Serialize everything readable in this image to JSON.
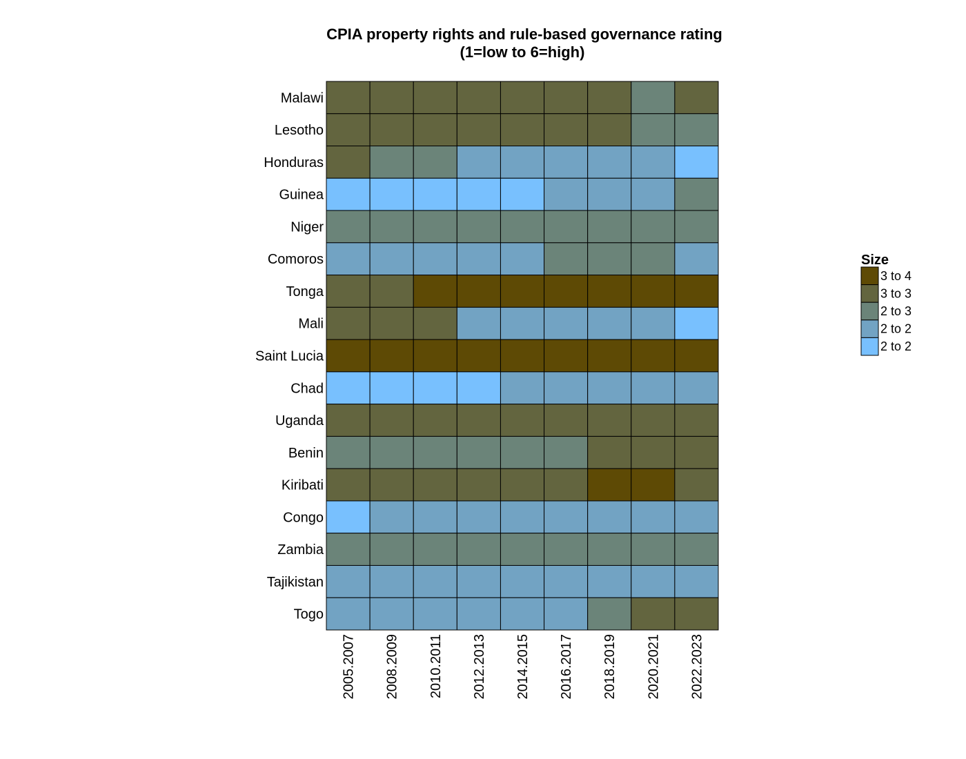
{
  "chart_data": {
    "type": "heatmap",
    "title": "CPIA property rights and rule-based governance rating",
    "subtitle": "(1=low to 6=high)",
    "xlabel": "",
    "ylabel": "",
    "grid": false,
    "legend_position": "right",
    "x": [
      "2005.2007",
      "2008.2009",
      "2010.2011",
      "2012.2013",
      "2014.2015",
      "2016.2017",
      "2018.2019",
      "2020.2021",
      "2022.2023"
    ],
    "y": [
      "Malawi",
      "Lesotho",
      "Honduras",
      "Guinea",
      "Niger",
      "Comoros",
      "Tonga",
      "Mali",
      "Saint Lucia",
      "Chad",
      "Uganda",
      "Benin",
      "Kiribati",
      "Congo",
      "Zambia",
      "Tajikistan",
      "Togo"
    ],
    "values": [
      [
        3,
        3,
        3,
        3,
        3,
        3,
        3,
        2.5,
        3
      ],
      [
        3,
        3,
        3,
        3,
        3,
        3,
        3,
        2.5,
        2.5
      ],
      [
        3,
        2.5,
        2.5,
        2,
        2,
        2,
        2,
        2,
        1.5
      ],
      [
        1.5,
        1.5,
        1.5,
        1.5,
        1.5,
        2,
        2,
        2,
        2.5
      ],
      [
        2.5,
        2.5,
        2.5,
        2.5,
        2.5,
        2.5,
        2.5,
        2.5,
        2.5
      ],
      [
        2,
        2,
        2,
        2,
        2,
        2.5,
        2.5,
        2.5,
        2
      ],
      [
        3,
        3,
        3.5,
        3.5,
        3.5,
        3.5,
        3.5,
        3.5,
        3.5
      ],
      [
        3,
        3,
        3,
        2,
        2,
        2,
        2,
        2,
        1.5
      ],
      [
        3.5,
        3.5,
        3.5,
        3.5,
        3.5,
        3.5,
        3.5,
        3.5,
        3.5
      ],
      [
        1.5,
        1.5,
        1.5,
        1.5,
        2,
        2,
        2,
        2,
        2
      ],
      [
        3,
        3,
        3,
        3,
        3,
        3,
        3,
        3,
        3
      ],
      [
        2.5,
        2.5,
        2.5,
        2.5,
        2.5,
        2.5,
        3,
        3,
        3
      ],
      [
        3,
        3,
        3,
        3,
        3,
        3,
        3.5,
        3.5,
        3
      ],
      [
        1.5,
        2,
        2,
        2,
        2,
        2,
        2,
        2,
        2
      ],
      [
        2.5,
        2.5,
        2.5,
        2.5,
        2.5,
        2.5,
        2.5,
        2.5,
        2.5
      ],
      [
        2,
        2,
        2,
        2,
        2,
        2,
        2,
        2,
        2
      ],
      [
        2,
        2,
        2,
        2,
        2,
        2,
        2.5,
        3,
        3
      ]
    ],
    "legend": {
      "title": "Size",
      "bins": [
        {
          "label": "3  to  4",
          "color": "#5e4a05"
        },
        {
          "label": "3  to  3",
          "color": "#63653f"
        },
        {
          "label": "2  to  3",
          "color": "#6b8479"
        },
        {
          "label": "2  to  2",
          "color": "#72a3c3"
        },
        {
          "label": "2  to  2",
          "color": "#78c0fe"
        }
      ]
    },
    "colors": {
      "3.5": "#5e4a05",
      "3": "#63653f",
      "2.5": "#6b8479",
      "2": "#72a3c3",
      "1.5": "#78c0fe"
    }
  }
}
